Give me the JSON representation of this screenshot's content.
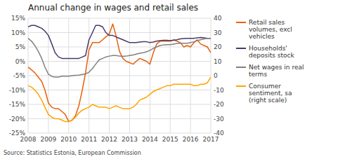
{
  "chart_data": {
    "type": "line",
    "title": "Annual change in wages and retail sales",
    "annotations": [
      "Source: Statistics Estonia, European Commission"
    ],
    "x": [
      2008.0,
      2008.17,
      2008.33,
      2008.5,
      2008.67,
      2008.83,
      2009.0,
      2009.17,
      2009.33,
      2009.5,
      2009.67,
      2009.83,
      2010.0,
      2010.17,
      2010.33,
      2010.5,
      2010.67,
      2010.83,
      2011.0,
      2011.17,
      2011.33,
      2011.5,
      2011.67,
      2011.83,
      2012.0,
      2012.17,
      2012.33,
      2012.5,
      2012.67,
      2012.83,
      2013.0,
      2013.17,
      2013.33,
      2013.5,
      2013.67,
      2013.83,
      2014.0,
      2014.17,
      2014.33,
      2014.5,
      2014.67,
      2014.83,
      2015.0,
      2015.17,
      2015.33,
      2015.5,
      2015.67,
      2015.83,
      2016.0,
      2016.17,
      2016.33,
      2016.5,
      2016.67,
      2016.83,
      2017.0
    ],
    "series": [
      {
        "name": "Retail sales\nvolumes, excl\nvehicles",
        "color": "#E8600A",
        "values": [
          -0.02,
          -0.03,
          -0.04,
          -0.055,
          -0.07,
          -0.1,
          -0.145,
          -0.16,
          -0.165,
          -0.165,
          -0.175,
          -0.185,
          -0.21,
          -0.205,
          -0.19,
          -0.155,
          -0.1,
          -0.04,
          0.04,
          0.065,
          0.065,
          0.065,
          0.075,
          0.085,
          0.095,
          0.13,
          0.09,
          0.035,
          0.01,
          0.0,
          -0.005,
          -0.01,
          0.0,
          0.01,
          0.005,
          0.0,
          -0.01,
          0.03,
          0.06,
          0.07,
          0.07,
          0.07,
          0.07,
          0.075,
          0.07,
          0.065,
          0.05,
          0.055,
          0.05,
          0.065,
          0.075,
          0.06,
          0.055,
          0.05,
          0.03
        ]
      },
      {
        "name": "Households'\ndeposits stock",
        "color": "#4B3869",
        "values": [
          0.12,
          0.125,
          0.125,
          0.12,
          0.115,
          0.105,
          0.09,
          0.06,
          0.03,
          0.015,
          0.01,
          0.01,
          0.01,
          0.01,
          0.01,
          0.01,
          0.015,
          0.02,
          0.075,
          0.1,
          0.125,
          0.125,
          0.12,
          0.1,
          0.09,
          0.09,
          0.085,
          0.08,
          0.075,
          0.07,
          0.065,
          0.065,
          0.065,
          0.067,
          0.068,
          0.068,
          0.065,
          0.067,
          0.07,
          0.072,
          0.073,
          0.073,
          0.072,
          0.073,
          0.075,
          0.078,
          0.079,
          0.08,
          0.08,
          0.08,
          0.082,
          0.083,
          0.082,
          0.08,
          0.08
        ]
      },
      {
        "name": "Net wages in real\nterms",
        "color": "#808080",
        "values": [
          0.08,
          0.07,
          0.055,
          0.035,
          0.01,
          -0.02,
          -0.045,
          -0.053,
          -0.055,
          -0.055,
          -0.052,
          -0.052,
          -0.052,
          -0.05,
          -0.049,
          -0.048,
          -0.046,
          -0.044,
          -0.038,
          -0.025,
          -0.01,
          0.005,
          0.01,
          0.015,
          0.018,
          0.02,
          0.02,
          0.018,
          0.017,
          0.018,
          0.02,
          0.022,
          0.025,
          0.028,
          0.03,
          0.033,
          0.038,
          0.045,
          0.05,
          0.055,
          0.057,
          0.058,
          0.058,
          0.06,
          0.062,
          0.063,
          0.063,
          0.063,
          0.065,
          0.068,
          0.072,
          0.075,
          0.078,
          0.08,
          0.08
        ]
      },
      {
        "name": "Consumer\nsentiment, sa\n(right scale)",
        "color": "#FFA500",
        "axis": "y2",
        "values": [
          -7,
          -8,
          -10,
          -13,
          -17,
          -22,
          -27,
          -29,
          -30,
          -30,
          -31,
          -32,
          -32,
          -31,
          -29,
          -26,
          -24,
          -23,
          -22,
          -20,
          -21,
          -22,
          -22,
          -22,
          -23,
          -22,
          -21,
          -22,
          -23,
          -23,
          -23,
          -22,
          -20,
          -17,
          -16,
          -15,
          -13,
          -11,
          -10,
          -9,
          -8,
          -7,
          -7,
          -6,
          -6,
          -6,
          -6,
          -6,
          -6,
          -7,
          -7,
          -6,
          -6,
          -5,
          -1
        ]
      }
    ],
    "xlim": [
      2008,
      2017
    ],
    "xticks": [
      2008,
      2009,
      2010,
      2011,
      2012,
      2013,
      2014,
      2015,
      2016,
      2017
    ],
    "ylim": [
      -0.25,
      0.15
    ],
    "yticks": [
      {
        "value": -0.25,
        "label": "-25%"
      },
      {
        "value": -0.2,
        "label": "-20%"
      },
      {
        "value": -0.15,
        "label": "-15%"
      },
      {
        "value": -0.1,
        "label": "-10%"
      },
      {
        "value": -0.05,
        "label": "-5%"
      },
      {
        "value": 0.0,
        "label": "0%"
      },
      {
        "value": 0.05,
        "label": "5%"
      },
      {
        "value": 0.1,
        "label": "10%"
      },
      {
        "value": 0.15,
        "label": "15%"
      }
    ],
    "y2lim": [
      -40,
      40
    ],
    "y2ticks": [
      -40,
      -30,
      -20,
      -10,
      0,
      10,
      20,
      30,
      40
    ],
    "grid": true,
    "legend": "right"
  }
}
